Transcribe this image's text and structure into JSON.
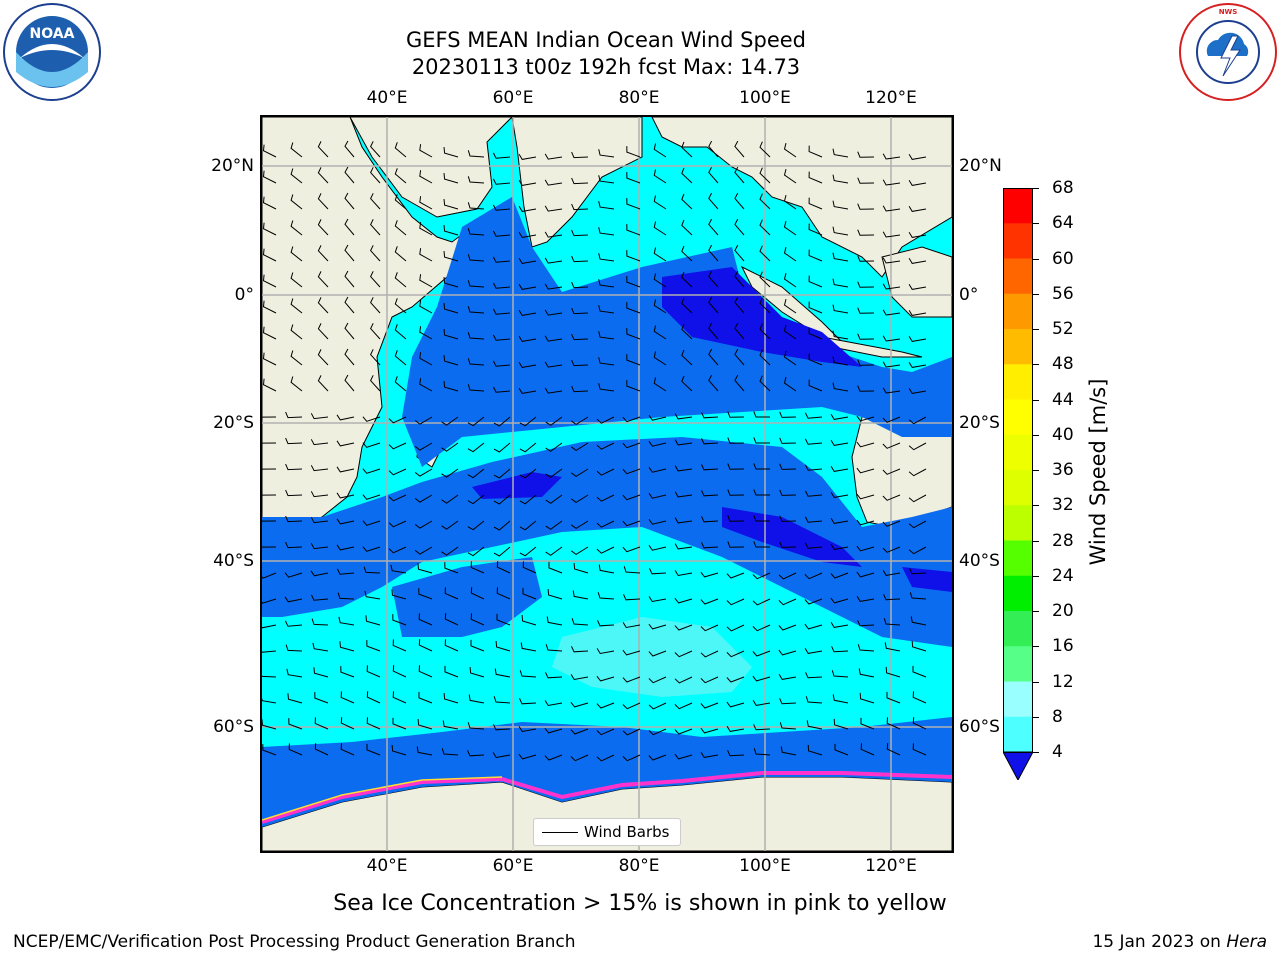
{
  "header": {
    "title_line1": "GEFS MEAN Indian Ocean Wind Speed",
    "title_line2": "20230113 t00z 192h fcst   Max: 14.73"
  },
  "map": {
    "lon_ticks": [
      "40°E",
      "60°E",
      "80°E",
      "100°E",
      "120°E"
    ],
    "lat_ticks": [
      "20°N",
      "0°",
      "20°S",
      "40°S",
      "60°S"
    ],
    "legend_label": "Wind Barbs",
    "colors": {
      "land": "#efefdf",
      "ocean_4_8": "#0c6cf0",
      "ocean_8_12": "#00ffff",
      "ocean_12_16": "#4df7f7",
      "ocean_lt_4": "#1010e8",
      "ice": "#ff33cc",
      "gridline": "#b0b0b0"
    }
  },
  "colorbar": {
    "label": "Wind Speed [m/s]",
    "ticks": [
      "68",
      "64",
      "60",
      "56",
      "52",
      "48",
      "44",
      "40",
      "36",
      "32",
      "28",
      "24",
      "20",
      "16",
      "12",
      "8",
      "4"
    ],
    "bands": [
      "#ff0000",
      "#ff3300",
      "#ff6600",
      "#ff9900",
      "#ffbb00",
      "#ffee00",
      "#ffff00",
      "#eeff00",
      "#ddff00",
      "#bbff00",
      "#55ff00",
      "#00ee00",
      "#33ee55",
      "#55ff88",
      "#99ffff",
      "#4dffff",
      "#00ffff",
      "#0c6cf0"
    ],
    "under_color": "#1010e8"
  },
  "note": "Sea Ice Concentration > 15% is shown in pink to yellow",
  "footer": {
    "left": "NCEP/EMC/Verification Post Processing Product Generation Branch",
    "right_date": "15 Jan 2023 on",
    "right_host": "Hera"
  },
  "logos": {
    "noaa_text": "NOAA",
    "noaa_ring": "NATIONAL OCEANIC AND ATMOSPHERIC ADMINISTRATION · U.S. DEPARTMENT OF COMMERCE",
    "nws_ring": "NATIONAL WEATHER SERVICE"
  }
}
